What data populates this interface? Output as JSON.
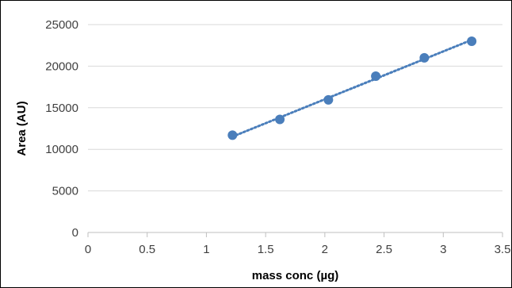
{
  "chart_data": {
    "type": "scatter",
    "title": "",
    "xlabel": "mass conc (µg)",
    "ylabel": "Area (AU)",
    "xlim": [
      0,
      3.5
    ],
    "ylim": [
      0,
      25000
    ],
    "x_ticks": [
      "0",
      "0.5",
      "1",
      "1.5",
      "2",
      "2.5",
      "3",
      "3.5"
    ],
    "y_ticks": [
      "0",
      "5000",
      "10000",
      "15000",
      "20000",
      "25000"
    ],
    "grid": "horizontal",
    "legend": "none",
    "series": [
      {
        "color": "#4a7ebb",
        "points": [
          {
            "x": 1.22,
            "y": 11700
          },
          {
            "x": 1.62,
            "y": 13600
          },
          {
            "x": 2.03,
            "y": 15950
          },
          {
            "x": 2.43,
            "y": 18800
          },
          {
            "x": 2.84,
            "y": 21000
          },
          {
            "x": 3.24,
            "y": 23000
          }
        ],
        "trendline": {
          "style": "dotted",
          "from_x": 1.22,
          "to_x": 3.24
        }
      }
    ]
  }
}
